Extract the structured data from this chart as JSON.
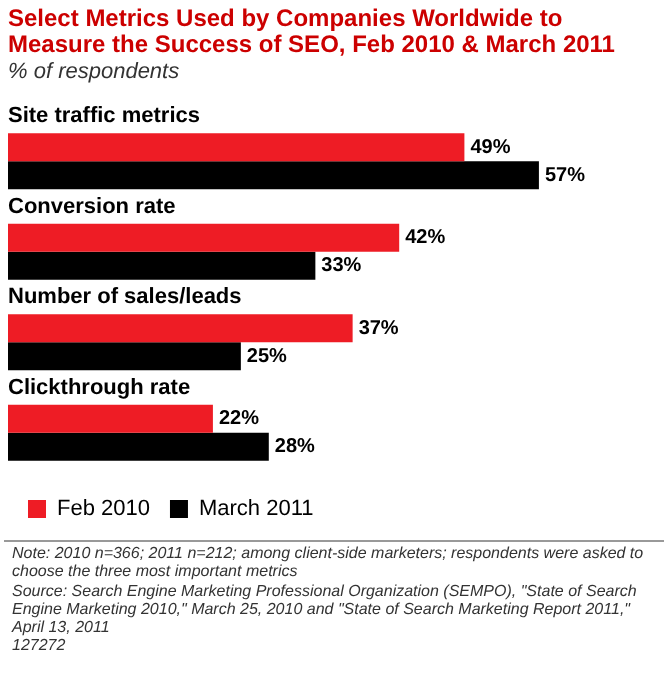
{
  "chart_data": {
    "type": "bar",
    "orientation": "horizontal",
    "title": "Select Metrics Used by Companies Worldwide to Measure the Success of SEO, Feb 2010 & March 2011",
    "subtitle": "% of respondents",
    "categories": [
      "Site traffic metrics",
      "Conversion rate",
      "Number of sales/leads",
      "Clickthrough rate"
    ],
    "series": [
      {
        "name": "Feb 2010",
        "color": "#ee1c25",
        "values": [
          49,
          42,
          37,
          22
        ],
        "value_labels": [
          "49%",
          "42%",
          "37%",
          "22%"
        ]
      },
      {
        "name": "March 2011",
        "color": "#000000",
        "values": [
          57,
          33,
          25,
          28
        ],
        "value_labels": [
          "57%",
          "33%",
          "25%",
          "28%"
        ]
      }
    ],
    "legend": "bottom",
    "annotations": [
      "Note: 2010 n=366; 2011 n=212; among client-side marketers; respondents were asked to choose the three most important metrics",
      "Source: Search Engine Marketing Professional Organization (SEMPO), \"State of Search Engine Marketing 2010,\" March 25, 2010 and \"State of Search Marketing Report 2011,\" April 13, 2011",
      "127272"
    ]
  }
}
